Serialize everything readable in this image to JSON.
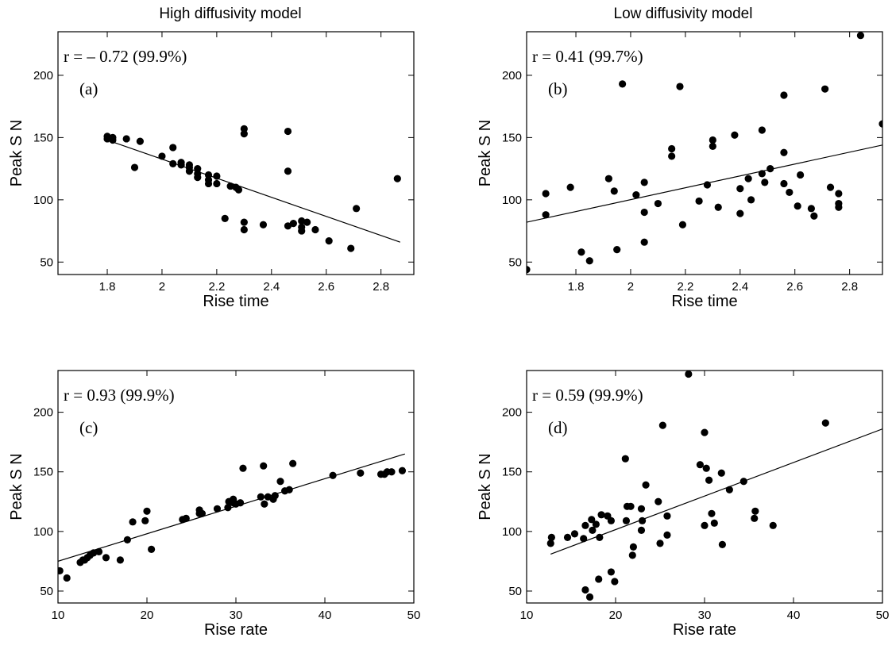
{
  "column_titles": [
    "High diffusivity model",
    "Low diffusivity model"
  ],
  "chart_data": [
    {
      "id": "a",
      "type": "scatter",
      "column": 0,
      "row": 0,
      "panel_label": "(a)",
      "correlation_text": "r = – 0.72 (99.9%)",
      "xlabel": "Rise time",
      "ylabel": "Peak S N",
      "xlim": [
        1.62,
        2.92
      ],
      "ylim": [
        40,
        235
      ],
      "xticks": [
        1.8,
        2.0,
        2.2,
        2.4,
        2.6,
        2.8
      ],
      "xtick_labels": [
        "1.8",
        "2",
        "2.2",
        "2.4",
        "2.6",
        "2.8"
      ],
      "yticks": [
        50,
        100,
        150,
        200
      ],
      "fit_line": [
        [
          1.8,
          148
        ],
        [
          2.87,
          66
        ]
      ],
      "points": [
        [
          1.8,
          151
        ],
        [
          1.8,
          149
        ],
        [
          1.82,
          150
        ],
        [
          1.82,
          148
        ],
        [
          1.87,
          149
        ],
        [
          1.9,
          126
        ],
        [
          1.92,
          147
        ],
        [
          2.0,
          135
        ],
        [
          2.04,
          142
        ],
        [
          2.04,
          129
        ],
        [
          2.07,
          130
        ],
        [
          2.07,
          128
        ],
        [
          2.1,
          128
        ],
        [
          2.1,
          126
        ],
        [
          2.1,
          123
        ],
        [
          2.13,
          125
        ],
        [
          2.13,
          121
        ],
        [
          2.13,
          118
        ],
        [
          2.17,
          120
        ],
        [
          2.17,
          116
        ],
        [
          2.17,
          113
        ],
        [
          2.2,
          119
        ],
        [
          2.2,
          113
        ],
        [
          2.23,
          85
        ],
        [
          2.25,
          111
        ],
        [
          2.27,
          110
        ],
        [
          2.28,
          108
        ],
        [
          2.3,
          82
        ],
        [
          2.3,
          157
        ],
        [
          2.3,
          153
        ],
        [
          2.3,
          76
        ],
        [
          2.37,
          80
        ],
        [
          2.46,
          155
        ],
        [
          2.46,
          123
        ],
        [
          2.46,
          79
        ],
        [
          2.48,
          81
        ],
        [
          2.51,
          83
        ],
        [
          2.51,
          78
        ],
        [
          2.51,
          75
        ],
        [
          2.53,
          82
        ],
        [
          2.56,
          76
        ],
        [
          2.61,
          67
        ],
        [
          2.69,
          61
        ],
        [
          2.71,
          93
        ],
        [
          2.86,
          117
        ]
      ]
    },
    {
      "id": "b",
      "type": "scatter",
      "column": 1,
      "row": 0,
      "panel_label": "(b)",
      "correlation_text": "r = 0.41 (99.7%)",
      "xlabel": "Rise time",
      "ylabel": "Peak S N",
      "xlim": [
        1.62,
        2.92
      ],
      "ylim": [
        40,
        235
      ],
      "xticks": [
        1.8,
        2.0,
        2.2,
        2.4,
        2.6,
        2.8
      ],
      "xtick_labels": [
        "1.8",
        "2",
        "2.2",
        "2.4",
        "2.6",
        "2.8"
      ],
      "yticks": [
        50,
        100,
        150,
        200
      ],
      "fit_line": [
        [
          1.62,
          82
        ],
        [
          2.92,
          144
        ]
      ],
      "points": [
        [
          1.62,
          44
        ],
        [
          1.69,
          105
        ],
        [
          1.69,
          88
        ],
        [
          1.78,
          110
        ],
        [
          1.82,
          58
        ],
        [
          1.85,
          51
        ],
        [
          1.92,
          117
        ],
        [
          1.94,
          107
        ],
        [
          1.95,
          60
        ],
        [
          1.97,
          193
        ],
        [
          2.02,
          104
        ],
        [
          2.05,
          114
        ],
        [
          2.05,
          90
        ],
        [
          2.05,
          66
        ],
        [
          2.1,
          97
        ],
        [
          2.15,
          141
        ],
        [
          2.15,
          135
        ],
        [
          2.18,
          191
        ],
        [
          2.19,
          80
        ],
        [
          2.25,
          99
        ],
        [
          2.28,
          112
        ],
        [
          2.3,
          148
        ],
        [
          2.3,
          143
        ],
        [
          2.32,
          94
        ],
        [
          2.38,
          152
        ],
        [
          2.4,
          109
        ],
        [
          2.4,
          89
        ],
        [
          2.43,
          117
        ],
        [
          2.44,
          100
        ],
        [
          2.48,
          156
        ],
        [
          2.48,
          121
        ],
        [
          2.49,
          114
        ],
        [
          2.51,
          125
        ],
        [
          2.56,
          184
        ],
        [
          2.56,
          138
        ],
        [
          2.56,
          113
        ],
        [
          2.58,
          106
        ],
        [
          2.61,
          95
        ],
        [
          2.62,
          120
        ],
        [
          2.66,
          93
        ],
        [
          2.67,
          87
        ],
        [
          2.71,
          189
        ],
        [
          2.73,
          110
        ],
        [
          2.76,
          105
        ],
        [
          2.76,
          97
        ],
        [
          2.76,
          94
        ],
        [
          2.84,
          232
        ],
        [
          2.92,
          161
        ]
      ]
    },
    {
      "id": "c",
      "type": "scatter",
      "column": 0,
      "row": 1,
      "panel_label": "(c)",
      "correlation_text": "r = 0.93 (99.9%)",
      "xlabel": "Rise rate",
      "ylabel": "Peak S N",
      "xlim": [
        10,
        50
      ],
      "ylim": [
        40,
        235
      ],
      "xticks": [
        10,
        20,
        30,
        40,
        50
      ],
      "xtick_labels": [
        "10",
        "20",
        "30",
        "40",
        "50"
      ],
      "yticks": [
        50,
        100,
        150,
        200
      ],
      "fit_line": [
        [
          10,
          75
        ],
        [
          49,
          165
        ]
      ],
      "points": [
        [
          10.2,
          67
        ],
        [
          11,
          61
        ],
        [
          12.5,
          74
        ],
        [
          12.8,
          76
        ],
        [
          13,
          76
        ],
        [
          13.3,
          78
        ],
        [
          13.6,
          80
        ],
        [
          14,
          82
        ],
        [
          14.6,
          83
        ],
        [
          15.4,
          78
        ],
        [
          17,
          76
        ],
        [
          17.8,
          93
        ],
        [
          18.4,
          108
        ],
        [
          19.8,
          109
        ],
        [
          20,
          117
        ],
        [
          20.5,
          85
        ],
        [
          24,
          110
        ],
        [
          24.4,
          111
        ],
        [
          25.9,
          115
        ],
        [
          25.9,
          118
        ],
        [
          26.2,
          115
        ],
        [
          27.9,
          119
        ],
        [
          29.1,
          120
        ],
        [
          29.2,
          125
        ],
        [
          29.7,
          124
        ],
        [
          29.7,
          127
        ],
        [
          30,
          123
        ],
        [
          30.5,
          124
        ],
        [
          30.8,
          153
        ],
        [
          32.8,
          129
        ],
        [
          33.1,
          155
        ],
        [
          33.2,
          123
        ],
        [
          33.6,
          129
        ],
        [
          34.2,
          127
        ],
        [
          34.4,
          130
        ],
        [
          35,
          142
        ],
        [
          35.5,
          134
        ],
        [
          36,
          135
        ],
        [
          36.4,
          157
        ],
        [
          40.9,
          147
        ],
        [
          44,
          149
        ],
        [
          46.3,
          148
        ],
        [
          46.7,
          148
        ],
        [
          47,
          150
        ],
        [
          47.5,
          150
        ],
        [
          48.7,
          151
        ]
      ]
    },
    {
      "id": "d",
      "type": "scatter",
      "column": 1,
      "row": 1,
      "panel_label": "(d)",
      "correlation_text": "r = 0.59 (99.9%)",
      "xlabel": "Rise rate",
      "ylabel": "Peak S N",
      "xlim": [
        10,
        50
      ],
      "ylim": [
        40,
        235
      ],
      "xticks": [
        10,
        20,
        30,
        40,
        50
      ],
      "xtick_labels": [
        "10",
        "20",
        "30",
        "40",
        "50"
      ],
      "yticks": [
        50,
        100,
        150,
        200
      ],
      "fit_line": [
        [
          12.7,
          81
        ],
        [
          50,
          186
        ]
      ],
      "points": [
        [
          12.7,
          90
        ],
        [
          12.8,
          95
        ],
        [
          14.6,
          95
        ],
        [
          15.4,
          98
        ],
        [
          16.4,
          94
        ],
        [
          16.6,
          105
        ],
        [
          16.6,
          51
        ],
        [
          17.1,
          45
        ],
        [
          17.3,
          110
        ],
        [
          17.4,
          101
        ],
        [
          17.8,
          106
        ],
        [
          18.1,
          60
        ],
        [
          18.2,
          95
        ],
        [
          18.4,
          114
        ],
        [
          19.1,
          113
        ],
        [
          19.5,
          66
        ],
        [
          19.5,
          109
        ],
        [
          19.9,
          58
        ],
        [
          21.1,
          161
        ],
        [
          21.2,
          109
        ],
        [
          21.3,
          121
        ],
        [
          21.7,
          121
        ],
        [
          21.9,
          80
        ],
        [
          22,
          87
        ],
        [
          22.9,
          119
        ],
        [
          22.9,
          101
        ],
        [
          23,
          109
        ],
        [
          23.4,
          139
        ],
        [
          24.8,
          125
        ],
        [
          25,
          90
        ],
        [
          25.3,
          189
        ],
        [
          25.8,
          97
        ],
        [
          25.8,
          113
        ],
        [
          28.2,
          232
        ],
        [
          29.5,
          156
        ],
        [
          30,
          105
        ],
        [
          30,
          183
        ],
        [
          30.2,
          153
        ],
        [
          30.5,
          143
        ],
        [
          30.8,
          115
        ],
        [
          31.1,
          107
        ],
        [
          31.9,
          149
        ],
        [
          32,
          89
        ],
        [
          32.8,
          135
        ],
        [
          34.4,
          142
        ],
        [
          35.6,
          111
        ],
        [
          35.7,
          117
        ],
        [
          37.7,
          105
        ],
        [
          43.6,
          191
        ]
      ]
    }
  ]
}
